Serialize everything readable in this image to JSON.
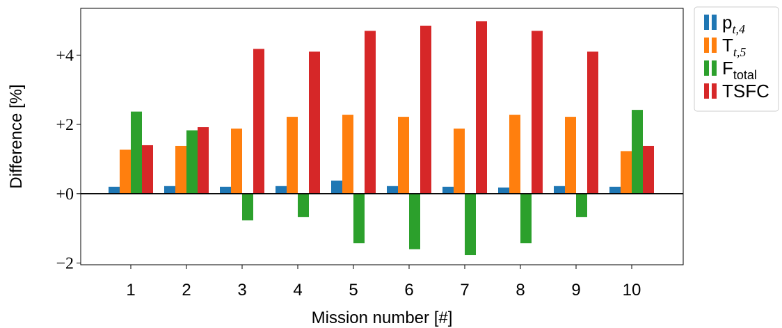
{
  "chart_data": {
    "type": "bar",
    "title": "",
    "xlabel": "Mission number [#]",
    "ylabel": "Difference [%]",
    "categories": [
      "1",
      "2",
      "3",
      "4",
      "5",
      "6",
      "7",
      "8",
      "9",
      "10"
    ],
    "ylim": [
      -2.05,
      5.35
    ],
    "yticks": [
      {
        "value": -2,
        "label": "−2"
      },
      {
        "value": 0,
        "label": "+0"
      },
      {
        "value": 2,
        "label": "+2"
      },
      {
        "value": 4,
        "label": "+4"
      }
    ],
    "series": [
      {
        "base": "p",
        "sub": "t,4",
        "color": "#1f77b4",
        "values": [
          0.2,
          0.22,
          0.2,
          0.22,
          0.38,
          0.22,
          0.2,
          0.18,
          0.22,
          0.2
        ]
      },
      {
        "base": "T",
        "sub": "t,5",
        "color": "#ff7f0e",
        "values": [
          1.27,
          1.38,
          1.88,
          2.22,
          2.28,
          2.22,
          1.88,
          2.28,
          2.22,
          1.23
        ]
      },
      {
        "base": "F",
        "sub": "total",
        "color": "#2ca02c",
        "values": [
          2.37,
          1.83,
          -0.77,
          -0.67,
          -1.43,
          -1.6,
          -1.77,
          -1.43,
          -0.67,
          2.42
        ]
      },
      {
        "base": "TSFC",
        "sub": "",
        "color": "#d62728",
        "values": [
          1.4,
          1.92,
          4.18,
          4.1,
          4.7,
          4.85,
          4.98,
          4.7,
          4.1,
          1.38
        ]
      }
    ],
    "legend_position": "outside-right",
    "grid": false
  }
}
